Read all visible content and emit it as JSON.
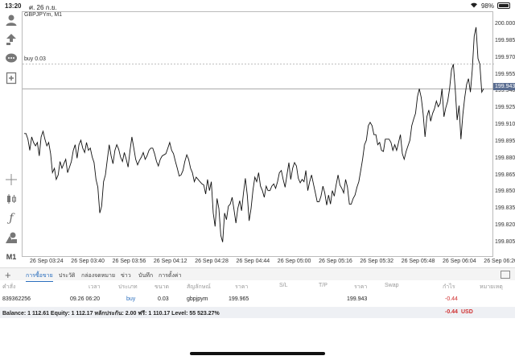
{
  "status": {
    "time": "13:20",
    "date": "ศ. 26 ก.ย.",
    "battery": "98%",
    "battery_level": 0.98
  },
  "chart": {
    "symbol": "GBPJPYm, M1",
    "buy_label": "buy 0.03",
    "current_price": "199.943",
    "y_labels": [
      "200.000",
      "199.985",
      "199.970",
      "199.955",
      "199.940",
      "199.925",
      "199.910",
      "199.895",
      "199.880",
      "199.865",
      "199.850",
      "199.835",
      "199.820",
      "199.805"
    ],
    "x_labels": [
      "26 Sep 03:24",
      "26 Sep 03:40",
      "26 Sep 03:56",
      "26 Sep 04:12",
      "26 Sep 04:28",
      "26 Sep 04:44",
      "26 Sep 05:00",
      "26 Sep 05:16",
      "26 Sep 05:32",
      "26 Sep 05:48",
      "26 Sep 06:04",
      "26 Sep 06:20"
    ]
  },
  "chart_data": {
    "type": "line",
    "ylim": [
      199.8,
      200.005
    ],
    "buy_level": 199.965,
    "current_level": 199.943,
    "values": [
      199.903,
      199.903,
      199.898,
      199.888,
      199.9,
      199.895,
      199.892,
      199.895,
      199.883,
      199.9,
      199.905,
      199.898,
      199.892,
      199.895,
      199.885,
      199.868,
      199.872,
      199.862,
      199.866,
      199.878,
      199.872,
      199.876,
      199.88,
      199.868,
      199.873,
      199.878,
      199.888,
      199.893,
      199.881,
      199.893,
      199.897,
      199.89,
      199.886,
      199.895,
      199.888,
      199.89,
      199.882,
      199.877,
      199.862,
      199.855,
      199.832,
      199.838,
      199.86,
      199.866,
      199.88,
      199.893,
      199.883,
      199.876,
      199.888,
      199.893,
      199.889,
      199.882,
      199.878,
      199.886,
      199.88,
      199.873,
      199.888,
      199.9,
      199.89,
      199.88,
      199.875,
      199.879,
      199.882,
      199.886,
      199.88,
      199.883,
      199.888,
      199.89,
      199.89,
      199.885,
      199.878,
      199.874,
      199.88,
      199.883,
      199.884,
      199.885,
      199.89,
      199.895,
      199.888,
      199.885,
      199.878,
      199.872,
      199.865,
      199.866,
      199.87,
      199.878,
      199.884,
      199.88,
      199.872,
      199.868,
      199.86,
      199.864,
      199.862,
      199.86,
      199.858,
      199.857,
      199.849,
      199.862,
      199.852,
      199.86,
      199.832,
      199.82,
      199.845,
      199.836,
      199.812,
      199.806,
      199.832,
      199.826,
      199.838,
      199.84,
      199.846,
      199.835,
      199.823,
      199.836,
      199.843,
      199.834,
      199.85,
      199.863,
      199.848,
      199.825,
      199.836,
      199.852,
      199.864,
      199.86,
      199.868,
      199.856,
      199.852,
      199.846,
      199.856,
      199.852,
      199.852,
      199.856,
      199.858,
      199.854,
      199.86,
      199.868,
      199.87,
      199.862,
      199.855,
      199.866,
      199.877,
      199.862,
      199.872,
      199.877,
      199.874,
      199.863,
      199.859,
      199.862,
      199.86,
      199.87,
      199.852,
      199.86,
      199.866,
      199.858,
      199.85,
      199.842,
      199.842,
      199.847,
      199.856,
      199.85,
      199.839,
      199.848,
      199.84,
      199.852,
      199.847,
      199.857,
      199.866,
      199.857,
      199.854,
      199.85,
      199.862,
      199.855,
      199.84,
      199.84,
      199.845,
      199.848,
      199.855,
      199.86,
      199.87,
      199.88,
      199.893,
      199.897,
      199.91,
      199.913,
      199.91,
      199.902,
      199.902,
      199.893,
      199.895,
      199.888,
      199.887,
      199.898,
      199.898,
      199.898,
      199.895,
      199.888,
      199.893,
      199.888,
      199.895,
      199.902,
      199.885,
      199.88,
      199.887,
      199.892,
      199.897,
      199.91,
      199.916,
      199.921,
      199.936,
      199.943,
      199.935,
      199.921,
      199.9,
      199.918,
      199.924,
      199.914,
      199.921,
      199.925,
      199.932,
      199.927,
      199.93,
      199.943,
      199.918,
      199.926,
      199.932,
      199.943,
      199.96,
      199.965,
      199.942,
      199.915,
      199.928,
      199.898,
      199.92,
      199.935,
      199.947,
      199.952,
      199.94,
      199.96,
      199.99,
      199.998,
      199.97,
      199.965,
      199.94,
      199.943
    ],
    "title": "",
    "xlabel": "",
    "ylabel": ""
  },
  "tabs": [
    {
      "label": "การซื้อขาย",
      "active": true
    },
    {
      "label": "ประวัติ",
      "active": false
    },
    {
      "label": "กล่องจดหมาย",
      "active": false
    },
    {
      "label": "ข่าว",
      "active": false
    },
    {
      "label": "บันทึก",
      "active": false
    },
    {
      "label": "การตั้งค่า",
      "active": false
    }
  ],
  "table": {
    "headers": [
      "คำสั่ง",
      "เวลา",
      "ประเภท",
      "ขนาด",
      "สัญลักษณ์",
      "ราคา",
      "S/L",
      "T/P",
      "ราคา",
      "Swap",
      "กำไร",
      "หมายเหตุ"
    ],
    "row": {
      "order": "839362256",
      "time": "09.26 06:20",
      "type": "buy",
      "size": "0.03",
      "symbol": "gbpjpym",
      "open_price": "199.965",
      "sl": "",
      "tp": "",
      "price": "199.943",
      "swap": "",
      "profit": "-0.44",
      "note": ""
    }
  },
  "balance": {
    "text": "Balance: 1 112.61 Equity: 1 112.17 หลักประกัน: 2.00 ฟรี: 1 110.17 Level: 55 523.27%",
    "profit": "-0.44",
    "currency": "USD"
  },
  "colors": {
    "accent": "#2a6ebd",
    "negative": "#d03030",
    "price_tag": "#5a6d91"
  }
}
